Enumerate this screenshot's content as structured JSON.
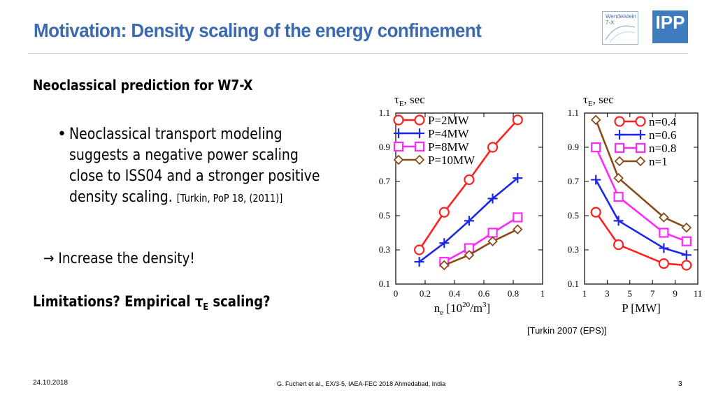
{
  "slide": {
    "title": "Motivation: Density scaling of the energy confinement",
    "logo_w7x_line1": "Wendelstein",
    "logo_w7x_line2": "7-X",
    "logo_ipp": "IPP",
    "subheading": "Neoclassical prediction for W7-X",
    "bullet_marker": "•",
    "bullet_text": "Neoclassical transport modeling suggests a negative power scaling close to ISS04 and a stronger positive density scaling.",
    "bullet_cite": "[Turkin, PoP 18, (2011)]",
    "arrow": "→",
    "arrow_text": "Increase the density!",
    "limits_text": "Limitations? Empirical τ",
    "limits_sub": "E",
    "limits_tail": " scaling?",
    "figure_cite": "[Turkin 2007 (EPS)]",
    "footer_date": "24.10.2018",
    "footer_center": "G. Fuchert et al., EX/3-5, IAEA-FEC 2018 Ahmedabad, India",
    "footer_page": "3"
  },
  "colors": {
    "title": "#3c6ab1",
    "red": "#ff2020",
    "blue": "#1c28e6",
    "magenta": "#ff28ff",
    "brown": "#8a4a18"
  },
  "chart_data": [
    {
      "type": "line",
      "ylabel_main": "τ",
      "ylabel_sub": "E",
      "ylabel_unit": ", sec",
      "xlabel_main": "n",
      "xlabel_sub": "e",
      "xlabel_unit": " [10",
      "xlabel_sup": "20",
      "xlabel_tail": "/m",
      "xlabel_sup2": "3",
      "xlabel_close": "]",
      "xlim": [
        0,
        1
      ],
      "ylim": [
        0.1,
        1.1
      ],
      "xticks": [
        "0",
        "0.2",
        "0.4",
        "0.6",
        "0.8",
        "1"
      ],
      "xtick_values": [
        0,
        0.2,
        0.4,
        0.6,
        0.8,
        1
      ],
      "yticks": [
        "0.1",
        "0.3",
        "0.5",
        "0.7",
        "0.9",
        "1.1"
      ],
      "ytick_values": [
        0.1,
        0.3,
        0.5,
        0.7,
        0.9,
        1.1
      ],
      "series": [
        {
          "name": "P=2MW",
          "color": "#ff2020",
          "marker": "circle",
          "x": [
            0.16,
            0.33,
            0.5,
            0.66,
            0.83
          ],
          "y": [
            0.3,
            0.52,
            0.71,
            0.9,
            1.06
          ]
        },
        {
          "name": "P=4MW",
          "color": "#1c28e6",
          "marker": "plus",
          "x": [
            0.16,
            0.33,
            0.5,
            0.66,
            0.83
          ],
          "y": [
            0.23,
            0.34,
            0.47,
            0.6,
            0.72
          ]
        },
        {
          "name": "P=8MW",
          "color": "#ff28ff",
          "marker": "square",
          "x": [
            0.33,
            0.5,
            0.66,
            0.83
          ],
          "y": [
            0.23,
            0.31,
            0.4,
            0.49
          ]
        },
        {
          "name": "P=10MW",
          "color": "#8a4a18",
          "marker": "diamond",
          "x": [
            0.33,
            0.5,
            0.66,
            0.83
          ],
          "y": [
            0.21,
            0.27,
            0.35,
            0.42
          ]
        }
      ]
    },
    {
      "type": "line",
      "ylabel_main": "τ",
      "ylabel_sub": "E",
      "ylabel_unit": ", sec",
      "xlabel_main": "P [MW]",
      "xlim": [
        1,
        11
      ],
      "ylim": [
        0.1,
        1.1
      ],
      "xticks": [
        "1",
        "3",
        "5",
        "7",
        "9",
        "11"
      ],
      "xtick_values": [
        1,
        3,
        5,
        7,
        9,
        11
      ],
      "yticks": [
        "0.1",
        "0.3",
        "0.5",
        "0.7",
        "0.9",
        "1.1"
      ],
      "ytick_values": [
        0.1,
        0.3,
        0.5,
        0.7,
        0.9,
        1.1
      ],
      "series": [
        {
          "name": "n=0.4",
          "color": "#ff2020",
          "marker": "circle",
          "x": [
            2,
            4,
            8,
            10
          ],
          "y": [
            0.52,
            0.33,
            0.22,
            0.21
          ]
        },
        {
          "name": "n=0.6",
          "color": "#1c28e6",
          "marker": "plus",
          "x": [
            2,
            4,
            8,
            10
          ],
          "y": [
            0.71,
            0.47,
            0.31,
            0.27
          ]
        },
        {
          "name": "n=0.8",
          "color": "#ff28ff",
          "marker": "square",
          "x": [
            2,
            4,
            8,
            10
          ],
          "y": [
            0.9,
            0.61,
            0.4,
            0.35
          ]
        },
        {
          "name": "n=1",
          "color": "#8a4a18",
          "marker": "diamond",
          "x": [
            2,
            4,
            8,
            10
          ],
          "y": [
            1.06,
            0.72,
            0.49,
            0.43
          ]
        }
      ]
    }
  ]
}
